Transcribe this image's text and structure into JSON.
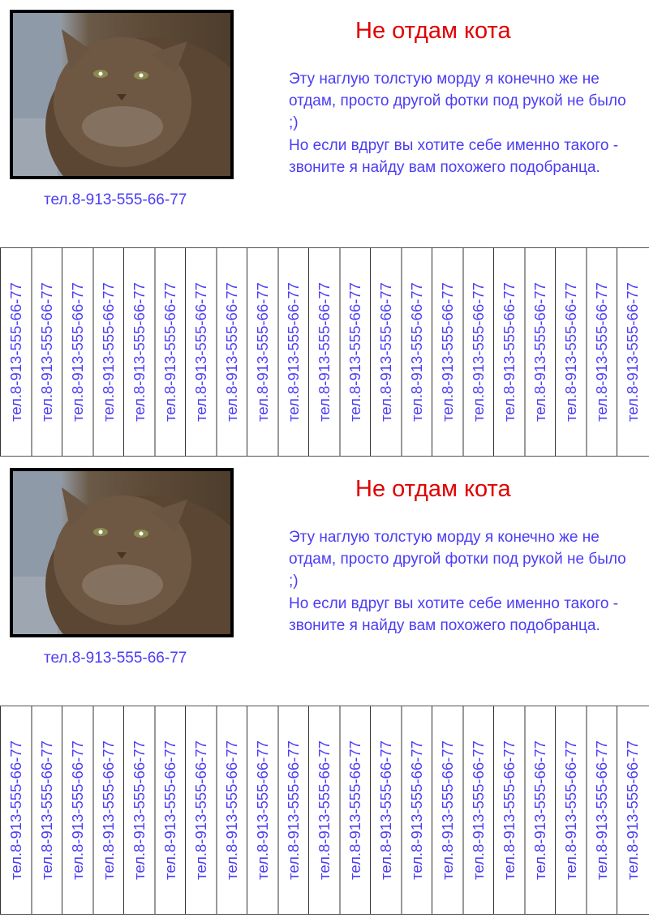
{
  "flyers": [
    {
      "title": "Не отдам кота",
      "phone": "тел.8-913-555-66-77",
      "paragraphs": [
        "Эту наглую толстую морду я конечно же не отдам, просто другой фотки под рукой не было ;)",
        "Но если вдруг вы хотите себе именно такого - звоните я найду вам похожего подобранца."
      ],
      "tear_off_label": "тел.8-913-555-66-77",
      "tear_off_count": 21
    },
    {
      "title": "Не отдам кота",
      "phone": "тел.8-913-555-66-77",
      "paragraphs": [
        "Эту наглую толстую морду я конечно же не отдам, просто другой фотки под рукой не было ;)",
        "Но если вдруг вы хотите себе именно такого - звоните я найду вам похожего подобранца."
      ],
      "tear_off_label": "тел.8-913-555-66-77",
      "tear_off_count": 21
    }
  ],
  "colors": {
    "title": "#e00000",
    "text": "#4b3cf5"
  },
  "photo": {
    "subject": "cat-photo"
  }
}
